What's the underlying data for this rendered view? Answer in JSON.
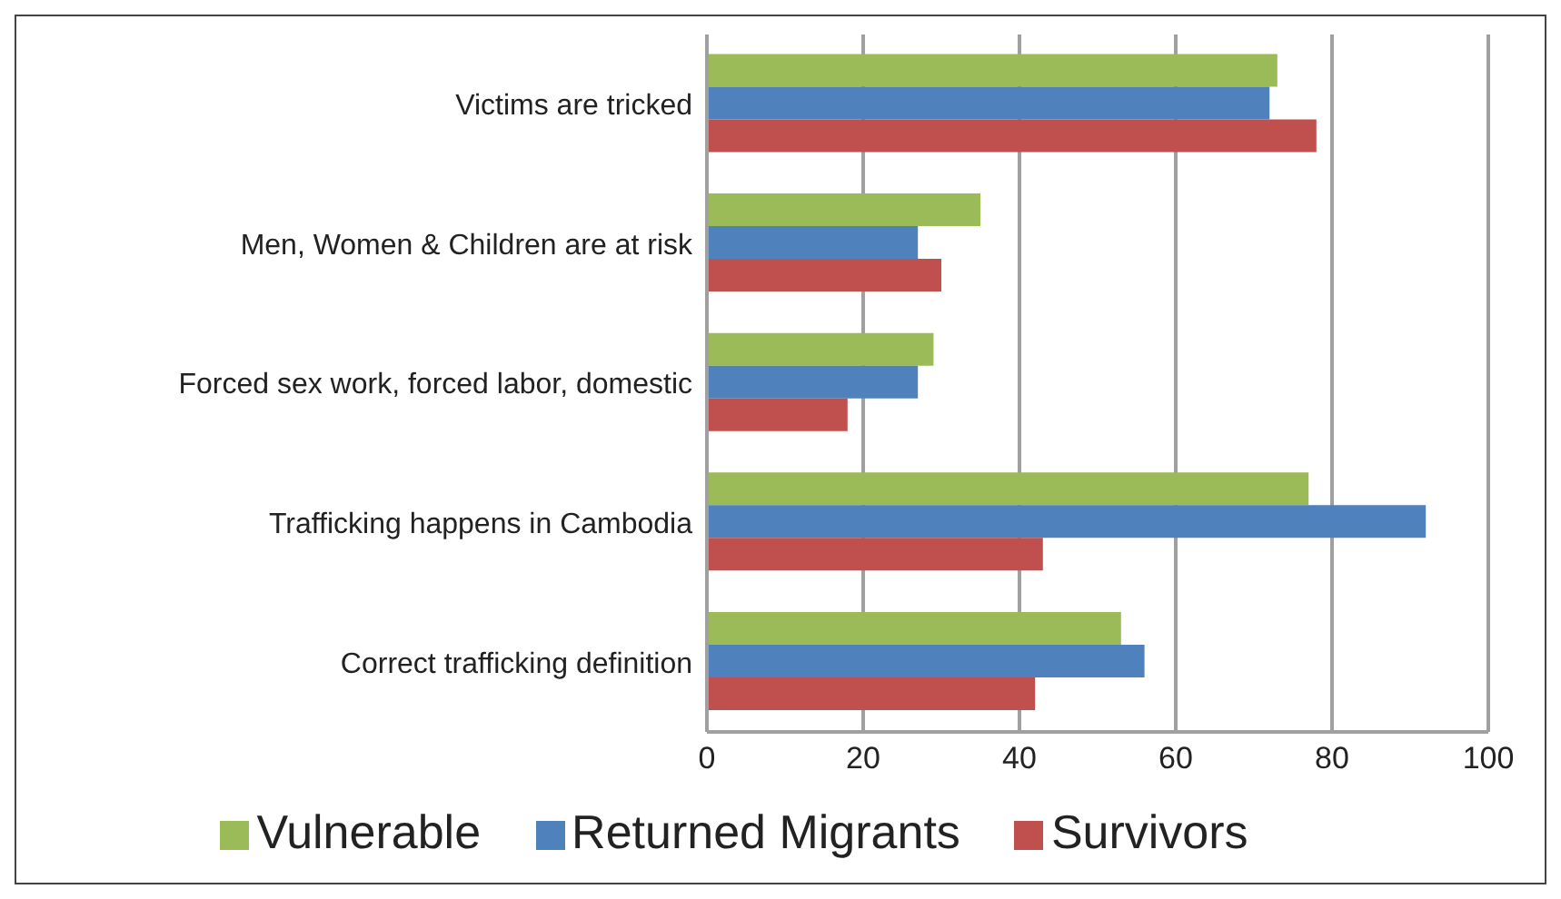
{
  "chart_data": {
    "type": "bar",
    "orientation": "horizontal",
    "categories": [
      "Victims are tricked",
      "Men, Women & Children are at risk",
      "Forced sex work, forced labor, domestic",
      "Trafficking happens in Cambodia",
      "Correct trafficking definition"
    ],
    "series": [
      {
        "name": "Vulnerable",
        "color": "#9bbb59",
        "values": [
          73,
          35,
          29,
          77,
          53
        ]
      },
      {
        "name": "Returned Migrants",
        "color": "#4f81bd",
        "values": [
          72,
          27,
          27,
          92,
          56
        ]
      },
      {
        "name": "Survivors",
        "color": "#c0504d",
        "values": [
          78,
          30,
          18,
          43,
          42
        ]
      }
    ],
    "xlim": [
      0,
      100
    ],
    "xticks": [
      0,
      20,
      40,
      60,
      80,
      100
    ],
    "grid": "x",
    "legend": "bottom"
  }
}
